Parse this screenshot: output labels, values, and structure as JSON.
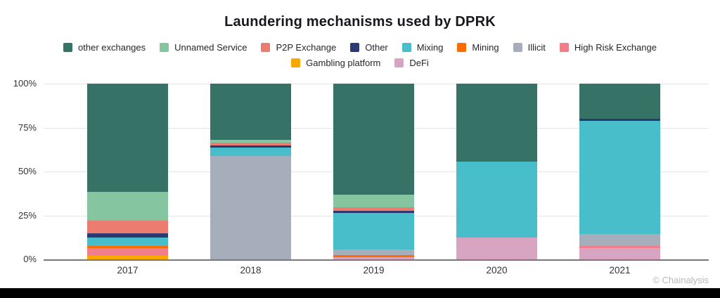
{
  "title": "Laundering mechanisms used by DPRK",
  "footer": {
    "credit": "© Chainalysis"
  },
  "colors": {
    "other exchanges": "#377267",
    "Unnamed Service": "#85C6A0",
    "P2P Exchange": "#EC7B70",
    "Other": "#2B3B72",
    "Mixing": "#47BEC9",
    "Mining": "#FF6D00",
    "Illicit": "#A6ADBB",
    "High Risk Exchange": "#F07E8B",
    "Gambling platform": "#F9A800",
    "DeFi": "#D7A5C1"
  },
  "legend": {
    "rows": [
      [
        "other exchanges",
        "Unnamed Service",
        "P2P Exchange",
        "Other",
        "Mixing",
        "Mining",
        "Illicit",
        "High Risk Exchange"
      ],
      [
        "Gambling platform",
        "DeFi"
      ]
    ]
  },
  "y_axis": {
    "ticks": [
      {
        "label": "100%",
        "value": 100
      },
      {
        "label": "75%",
        "value": 75
      },
      {
        "label": "50%",
        "value": 50
      },
      {
        "label": "25%",
        "value": 25
      },
      {
        "label": "0%",
        "value": 0
      }
    ]
  },
  "chart_data": {
    "type": "bar",
    "stacked": true,
    "unit": "percent",
    "title": "Laundering mechanisms used by DPRK",
    "categories": [
      "2017",
      "2018",
      "2019",
      "2020",
      "2021"
    ],
    "ylim": [
      0,
      100
    ],
    "grid": "horizontal",
    "legend_position": "top",
    "stacks": [
      {
        "category": "2017",
        "segments_bottom_to_top": [
          {
            "name": "Gambling platform",
            "value": 2
          },
          {
            "name": "High Risk Exchange",
            "value": 4.5
          },
          {
            "name": "Mining",
            "value": 1
          },
          {
            "name": "Mixing",
            "value": 5
          },
          {
            "name": "Other",
            "value": 2.5
          },
          {
            "name": "P2P Exchange",
            "value": 7
          },
          {
            "name": "Unnamed Service",
            "value": 16.5
          },
          {
            "name": "other exchanges",
            "value": 61.5
          }
        ]
      },
      {
        "category": "2018",
        "segments_bottom_to_top": [
          {
            "name": "Illicit",
            "value": 59
          },
          {
            "name": "Mixing",
            "value": 4.5
          },
          {
            "name": "Other",
            "value": 1.5
          },
          {
            "name": "P2P Exchange",
            "value": 1.5
          },
          {
            "name": "Unnamed Service",
            "value": 1.5
          },
          {
            "name": "other exchanges",
            "value": 32
          }
        ]
      },
      {
        "category": "2019",
        "segments_bottom_to_top": [
          {
            "name": "DeFi",
            "value": 1.2
          },
          {
            "name": "Mining",
            "value": 1.4
          },
          {
            "name": "Illicit",
            "value": 3.2
          },
          {
            "name": "Mixing",
            "value": 20.8
          },
          {
            "name": "Other",
            "value": 1.2
          },
          {
            "name": "P2P Exchange",
            "value": 2
          },
          {
            "name": "Unnamed Service",
            "value": 7.2
          },
          {
            "name": "other exchanges",
            "value": 63
          }
        ]
      },
      {
        "category": "2020",
        "segments_bottom_to_top": [
          {
            "name": "DeFi",
            "value": 12.3
          },
          {
            "name": "Mixing",
            "value": 43.2
          },
          {
            "name": "other exchanges",
            "value": 44.5
          }
        ]
      },
      {
        "category": "2021",
        "segments_bottom_to_top": [
          {
            "name": "DeFi",
            "value": 6.5
          },
          {
            "name": "High Risk Exchange",
            "value": 1
          },
          {
            "name": "Illicit",
            "value": 7
          },
          {
            "name": "Mixing",
            "value": 64.5
          },
          {
            "name": "Other",
            "value": 1
          },
          {
            "name": "other exchanges",
            "value": 20
          }
        ]
      }
    ]
  }
}
